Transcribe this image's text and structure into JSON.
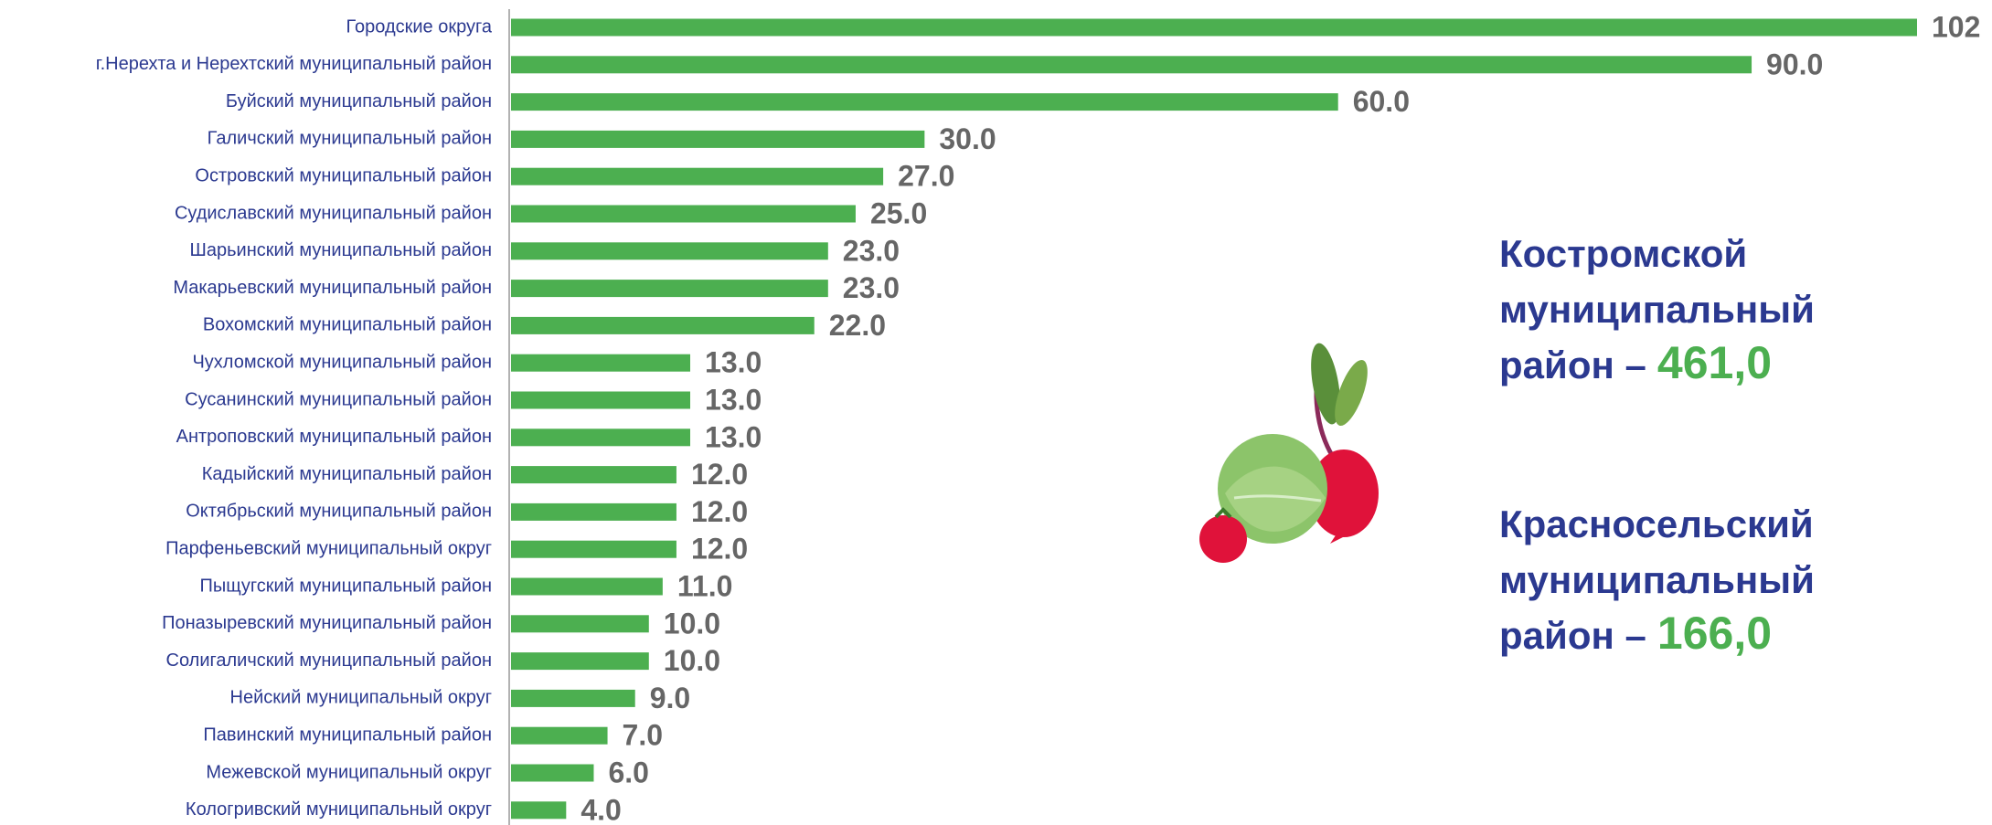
{
  "chart_data": {
    "type": "barh",
    "categories": [
      "Городские округа",
      "г.Нерехта и Нерехтский муниципальный район",
      "Буйский муниципальный район",
      "Галичский муниципальный район",
      "Островский муниципальный район",
      "Судиславский муниципальный район",
      "Шарьинский муниципальный район",
      "Макарьевский муниципальный район",
      "Вохомский муниципальный район",
      "Чухломской муниципальный район",
      "Сусанинский муниципальный район",
      "Антроповский муниципальный район",
      "Кадыйский муниципальный район",
      "Октябрьский муниципальный район",
      "Парфеньевский муниципальный округ",
      "Пыщугский муниципальный район",
      "Поназыревский муниципальный район",
      "Солигаличский муниципальный район",
      "Нейский муниципальный округ",
      "Павинский муниципальный район",
      "Межевской муниципальный округ",
      "Кологривский муниципальный округ"
    ],
    "values": [
      102,
      90,
      60,
      30,
      27,
      25,
      23,
      23,
      22,
      13,
      13,
      13,
      12,
      12,
      12,
      11,
      10,
      10,
      9,
      7,
      6,
      4
    ],
    "value_labels": [
      "102",
      "90.0",
      "60.0",
      "30.0",
      "27.0",
      "25.0",
      "23.0",
      "23.0",
      "22.0",
      "13.0",
      "13.0",
      "13.0",
      "12.0",
      "12.0",
      "12.0",
      "11.0",
      "10.0",
      "10.0",
      "9.0",
      "7.0",
      "6.0",
      "4.0"
    ],
    "color": "#4caf50",
    "xlim": [
      0,
      102
    ],
    "annotations": [
      {
        "lines": [
          "Костромской",
          "муниципальный",
          "район –"
        ],
        "value": "461,0"
      },
      {
        "lines": [
          "Красносельский",
          "муниципальный",
          "район –"
        ],
        "value": "166,0"
      }
    ]
  }
}
